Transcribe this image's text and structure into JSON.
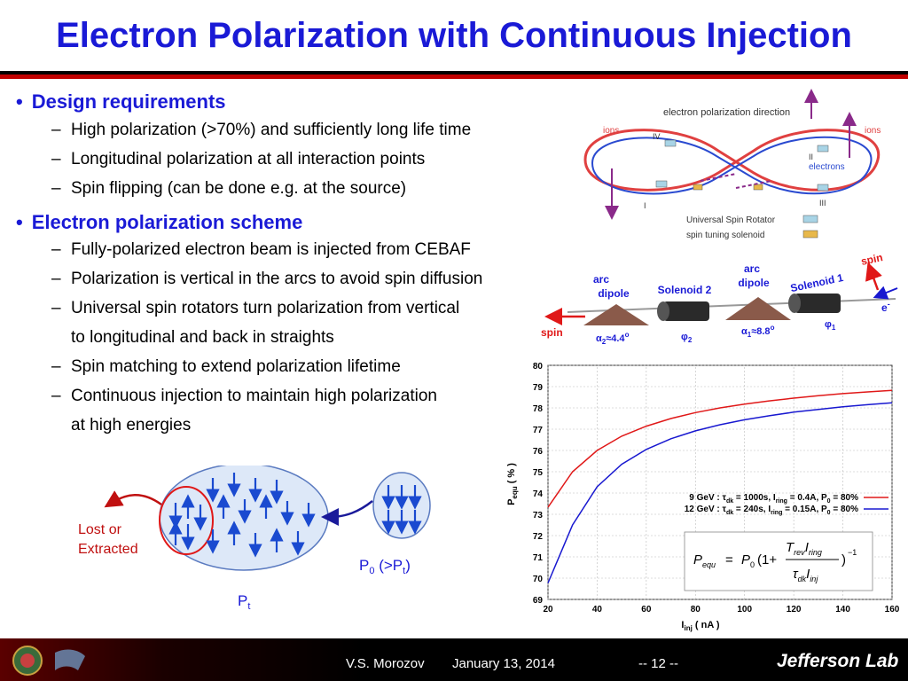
{
  "slide": {
    "title": "Electron Polarization with Continuous Injection",
    "bullets": [
      {
        "heading": "Design requirements",
        "items": [
          "High polarization (>70%) and sufficiently long life time",
          "Longitudinal polarization at all interaction points",
          "Spin flipping (can be done e.g. at the source)"
        ]
      },
      {
        "heading": "Electron polarization scheme",
        "items": [
          "Fully-polarized electron beam is injected from CEBAF",
          "Polarization is vertical in the arcs to avoid spin diffusion",
          "Universal spin rotators turn polarization from vertical",
          "to longitudinal and back in straights",
          "Spin matching to extend polarization lifetime",
          "Continuous injection to maintain high polarization",
          "at high energies"
        ]
      }
    ]
  },
  "ring_diagram": {
    "top_label": "electron polarization direction",
    "ions_left": "ions",
    "ions_right": "ions",
    "electrons": "electrons",
    "ip_labels": [
      "IV",
      "II",
      "I",
      "III"
    ],
    "legend": [
      {
        "label": "Universal Spin Rotator",
        "color": "#a8d4e6"
      },
      {
        "label": "spin tuning solenoid",
        "color": "#e8b84a"
      }
    ]
  },
  "rotator_diagram": {
    "arc_dipole_left": [
      "arc",
      "dipole"
    ],
    "arc_dipole_right": [
      "arc",
      "dipole"
    ],
    "solenoid2": "Solenoid 2",
    "solenoid1": "Solenoid 1",
    "spin_left": "spin",
    "spin_right": "spin",
    "electron": "e",
    "electron_sup": "-",
    "alpha2": "α",
    "alpha2_sub": "2",
    "alpha2_val": "≈4.4",
    "alpha2_deg": "o",
    "phi2": "φ",
    "phi2_sub": "2",
    "alpha1": "α",
    "alpha1_sub": "1",
    "alpha1_val": "≈8.8",
    "alpha1_deg": "o",
    "phi1": "φ",
    "phi1_sub": "1"
  },
  "injection_diagram": {
    "lost_label": [
      "Lost or",
      "Extracted"
    ],
    "p0_label": "P",
    "p0_sub": "0",
    "p0_rest": " (>P",
    "p0_sub2": "t",
    "p0_close": ")",
    "pt_label": "P",
    "pt_sub": "t"
  },
  "chart_data": {
    "type": "line",
    "xlabel": "I",
    "xlabel_sub": "inj",
    "xlabel_unit": " ( nA )",
    "ylabel": "P",
    "ylabel_sub": "equ",
    "ylabel_unit": " ( % )",
    "xlim": [
      20,
      160
    ],
    "ylim": [
      69,
      80
    ],
    "x_ticks": [
      20,
      40,
      60,
      80,
      100,
      120,
      140,
      160
    ],
    "y_ticks": [
      69,
      70,
      71,
      72,
      73,
      74,
      75,
      76,
      77,
      78,
      79,
      80
    ],
    "grid": true,
    "legend_placement": "center-right",
    "series": [
      {
        "name": "9 GeV : τdk = 1000s, Iring = 0.4A, P0 = 80%",
        "color": "#e01818",
        "x": [
          20,
          30,
          40,
          50,
          60,
          70,
          80,
          90,
          100,
          110,
          120,
          130,
          140,
          150,
          160
        ],
        "y": [
          73.33,
          75.0,
          76.0,
          76.67,
          77.14,
          77.5,
          77.78,
          78.0,
          78.18,
          78.33,
          78.46,
          78.57,
          78.67,
          78.75,
          78.82
        ]
      },
      {
        "name": "12 GeV : τdk = 240s, Iring = 0.15A, P0 = 80%",
        "color": "#1818d0",
        "x": [
          20,
          30,
          40,
          50,
          60,
          70,
          80,
          90,
          100,
          110,
          120,
          130,
          140,
          150,
          160
        ],
        "y": [
          69.77,
          72.5,
          74.29,
          75.35,
          76.05,
          76.55,
          76.92,
          77.21,
          77.44,
          77.63,
          77.8,
          77.93,
          78.05,
          78.15,
          78.24
        ]
      }
    ],
    "legend_lines": [
      {
        "pre": "9 GeV : τ",
        "sub1": "dk",
        "mid1": " = 1000s, I",
        "sub2": "ring",
        "mid2": " = 0.4A, P",
        "sub3": "0",
        "post": " = 80%"
      },
      {
        "pre": "12 GeV : τ",
        "sub1": "dk",
        "mid1": " = 240s, I",
        "sub2": "ring",
        "mid2": " = 0.15A, P",
        "sub3": "0",
        "post": " = 80%"
      }
    ],
    "formula": {
      "lhs": "P",
      "lhs_sub": "equ",
      "eq": "=",
      "p0": "P",
      "p0_sub": "0",
      "open": "(1+",
      "num_t": "T",
      "num_t_sub": "rev",
      "num_i": "I",
      "num_i_sub": "ring",
      "den_tau": "τ",
      "den_tau_sub": "dk",
      "den_i": "I",
      "den_i_sub": "inj",
      "close": ")",
      "exp": "−1"
    }
  },
  "footer": {
    "author": "V.S. Morozov",
    "date": "January 13, 2014",
    "page": "-- 12 --",
    "logo": "Jefferson Lab"
  }
}
